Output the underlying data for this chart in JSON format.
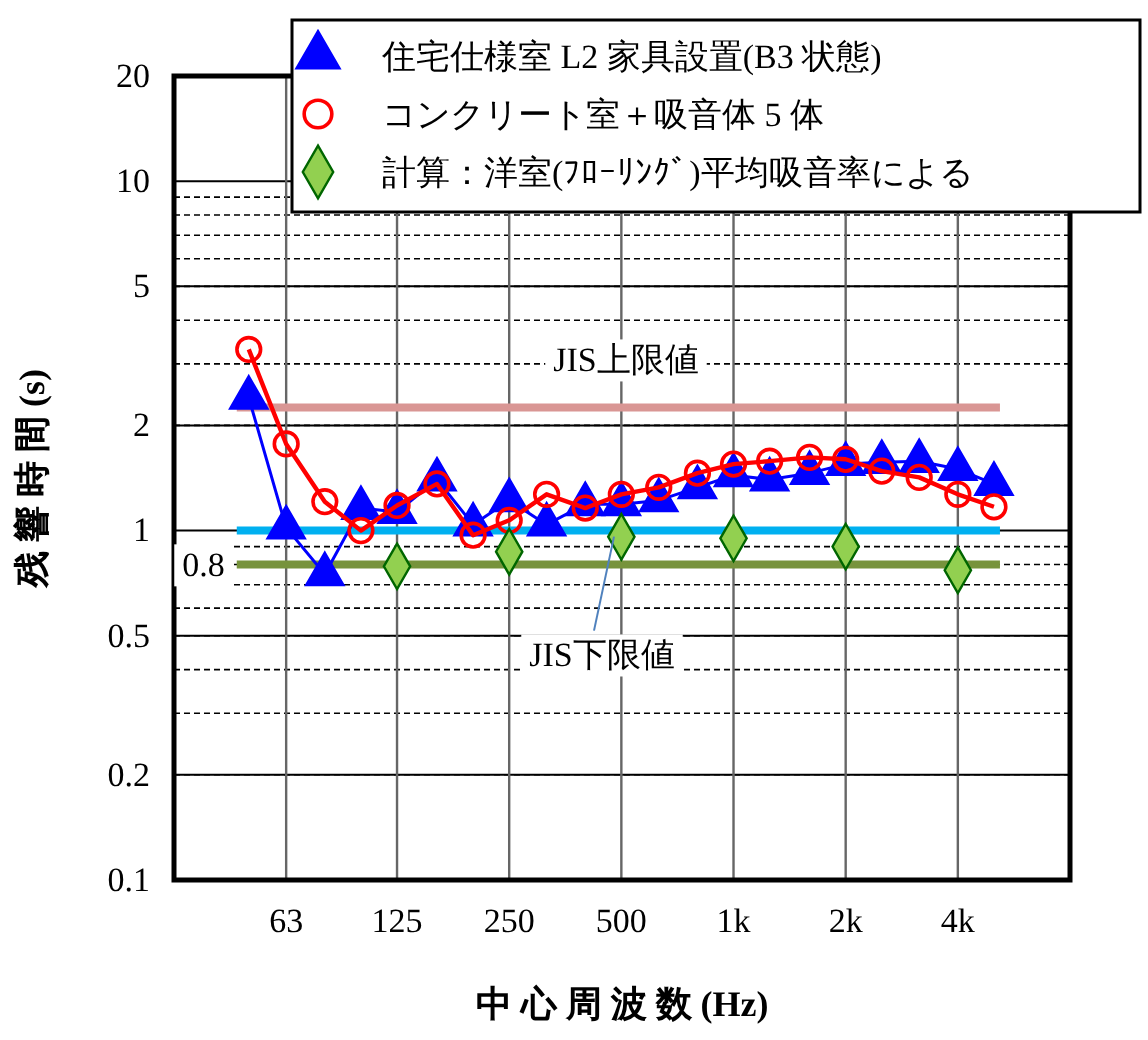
{
  "chart_data": {
    "type": "line",
    "xlabel": "中 心 周 波 数 (Hz)",
    "ylabel": "残 響 時 間 (s)",
    "log": "xy",
    "x": [
      50,
      63,
      80,
      100,
      125,
      160,
      200,
      250,
      315,
      400,
      500,
      630,
      800,
      1000,
      1250,
      1600,
      2000,
      2500,
      3150,
      4000,
      5000
    ],
    "xlim": [
      31.5,
      8000
    ],
    "xticks": [
      {
        "value": 63,
        "label": "63"
      },
      {
        "value": 125,
        "label": "125"
      },
      {
        "value": 250,
        "label": "250"
      },
      {
        "value": 500,
        "label": "500"
      },
      {
        "value": 1000,
        "label": "1k"
      },
      {
        "value": 2000,
        "label": "2k"
      },
      {
        "value": 4000,
        "label": "4k"
      }
    ],
    "ylim": [
      0.1,
      20
    ],
    "yticks": [
      0.1,
      0.2,
      0.5,
      1,
      2,
      5,
      10,
      20
    ],
    "grid": true,
    "legend": "top right",
    "series": [
      {
        "name": "住宅仕様室 L2 家具設置(B3 状態)",
        "color": "#0000ff",
        "marker": "triangle",
        "values": [
          2.4,
          1.02,
          0.75,
          1.16,
          1.13,
          1.4,
          1.04,
          1.22,
          1.04,
          1.19,
          1.19,
          1.22,
          1.33,
          1.44,
          1.4,
          1.46,
          1.55,
          1.57,
          1.58,
          1.5,
          1.36
        ]
      },
      {
        "name": "コンクリート室＋吸音体 5 体",
        "color": "#ff0000",
        "marker": "circle",
        "values": [
          3.3,
          1.77,
          1.21,
          1.0,
          1.18,
          1.36,
          0.97,
          1.07,
          1.27,
          1.16,
          1.27,
          1.33,
          1.46,
          1.55,
          1.58,
          1.62,
          1.6,
          1.48,
          1.42,
          1.27,
          1.17
        ]
      },
      {
        "name": "計算：洋室(ﾌﾛｰﾘﾝｸﾞ)平均吸音率による",
        "color": "#92d050",
        "type": "scatter",
        "marker": "diamond",
        "x": [
          125,
          250,
          500,
          1000,
          2000,
          4000
        ],
        "values": [
          0.79,
          0.87,
          0.96,
          0.95,
          0.9,
          0.77
        ]
      }
    ],
    "ref_lines": [
      {
        "axis": "y",
        "value": 2.25,
        "label": "JIS上限値",
        "color": "#d99694"
      },
      {
        "axis": "y",
        "value": 1,
        "label": "JIS下限値",
        "color": "#00b0f0"
      },
      {
        "axis": "y",
        "value": 0.8,
        "label": "0.8",
        "color": "#77933c"
      }
    ]
  }
}
